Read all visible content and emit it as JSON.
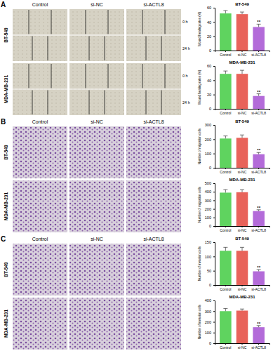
{
  "figure": {
    "panels": [
      {
        "letter": "A",
        "columns": [
          "Control",
          "si-NC",
          "si-ACTL8"
        ],
        "rows": [
          {
            "cell_line": "BT-549",
            "times": [
              "0 h",
              "24 h"
            ]
          },
          {
            "cell_line": "MDA-MB-231",
            "times": [
              "0 h",
              "24 h"
            ]
          }
        ]
      },
      {
        "letter": "B",
        "columns": [
          "Control",
          "si-NC",
          "si-ACTL8"
        ],
        "rows": [
          {
            "cell_line": "BT-549"
          },
          {
            "cell_line": "MDA-MB-231"
          }
        ]
      },
      {
        "letter": "C",
        "columns": [
          "Control",
          "si-NC",
          "si-ACTL8"
        ],
        "rows": [
          {
            "cell_line": "BT-549"
          },
          {
            "cell_line": "MDA-MB-231"
          }
        ]
      }
    ]
  },
  "chart_data": [
    {
      "type": "bar",
      "title": "BT-549",
      "y_label": "Wound healing rates (%)",
      "categories": [
        "Control",
        "si-NC",
        "si-ACTL8"
      ],
      "values": [
        52,
        51,
        33
      ],
      "errors": [
        4,
        3,
        4
      ],
      "colors": [
        "#5fd35f",
        "#e8635a",
        "#b36bd9"
      ],
      "ylim": [
        0,
        60
      ],
      "yticks": [
        0,
        20,
        40,
        60
      ],
      "annotations": [
        {
          "text": "**",
          "category": "si-ACTL8"
        }
      ]
    },
    {
      "type": "bar",
      "title": "MDA-MB-231",
      "y_label": "Wound healing rates (%)",
      "categories": [
        "Control",
        "si-NC",
        "si-ACTL8"
      ],
      "values": [
        49,
        49,
        18
      ],
      "errors": [
        4,
        5,
        3
      ],
      "colors": [
        "#5fd35f",
        "#e8635a",
        "#b36bd9"
      ],
      "ylim": [
        0,
        60
      ],
      "yticks": [
        0,
        20,
        40,
        60
      ],
      "annotations": [
        {
          "text": "**",
          "category": "si-ACTL8"
        }
      ]
    },
    {
      "type": "bar",
      "title": "BT-549",
      "y_label": "Number of migration cells",
      "categories": [
        "Control",
        "si-NC",
        "si-ACTL8"
      ],
      "values": [
        205,
        210,
        95
      ],
      "errors": [
        18,
        20,
        12
      ],
      "colors": [
        "#5fd35f",
        "#e8635a",
        "#b36bd9"
      ],
      "ylim": [
        0,
        300
      ],
      "yticks": [
        0,
        100,
        200,
        300
      ],
      "annotations": [
        {
          "text": "**",
          "category": "si-ACTL8"
        }
      ]
    },
    {
      "type": "bar",
      "title": "MDA-MB-231",
      "y_label": "Number of migration cells",
      "categories": [
        "Control",
        "si-NC",
        "si-ACTL8"
      ],
      "values": [
        390,
        395,
        175
      ],
      "errors": [
        35,
        30,
        15
      ],
      "colors": [
        "#5fd35f",
        "#e8635a",
        "#b36bd9"
      ],
      "ylim": [
        0,
        500
      ],
      "yticks": [
        0,
        100,
        200,
        300,
        400,
        500
      ],
      "annotations": [
        {
          "text": "**",
          "category": "si-ACTL8"
        }
      ]
    },
    {
      "type": "bar",
      "title": "BT-549",
      "y_label": "Number of invasion cells",
      "categories": [
        "Control",
        "si-NC",
        "si-ACTL8"
      ],
      "values": [
        120,
        120,
        48
      ],
      "errors": [
        12,
        12,
        6
      ],
      "colors": [
        "#5fd35f",
        "#e8635a",
        "#b36bd9"
      ],
      "ylim": [
        0,
        150
      ],
      "yticks": [
        0,
        50,
        100,
        150
      ],
      "annotations": [
        {
          "text": "**",
          "category": "si-ACTL8"
        }
      ]
    },
    {
      "type": "bar",
      "title": "MDA-MB-231",
      "y_label": "Number of invasion cells",
      "categories": [
        "Control",
        "si-NC",
        "si-ACTL8"
      ],
      "values": [
        300,
        305,
        150
      ],
      "errors": [
        25,
        15,
        15
      ],
      "colors": [
        "#5fd35f",
        "#e8635a",
        "#b36bd9"
      ],
      "ylim": [
        0,
        400
      ],
      "yticks": [
        0,
        100,
        200,
        300,
        400
      ],
      "annotations": [
        {
          "text": "**",
          "category": "si-ACTL8"
        }
      ]
    }
  ]
}
